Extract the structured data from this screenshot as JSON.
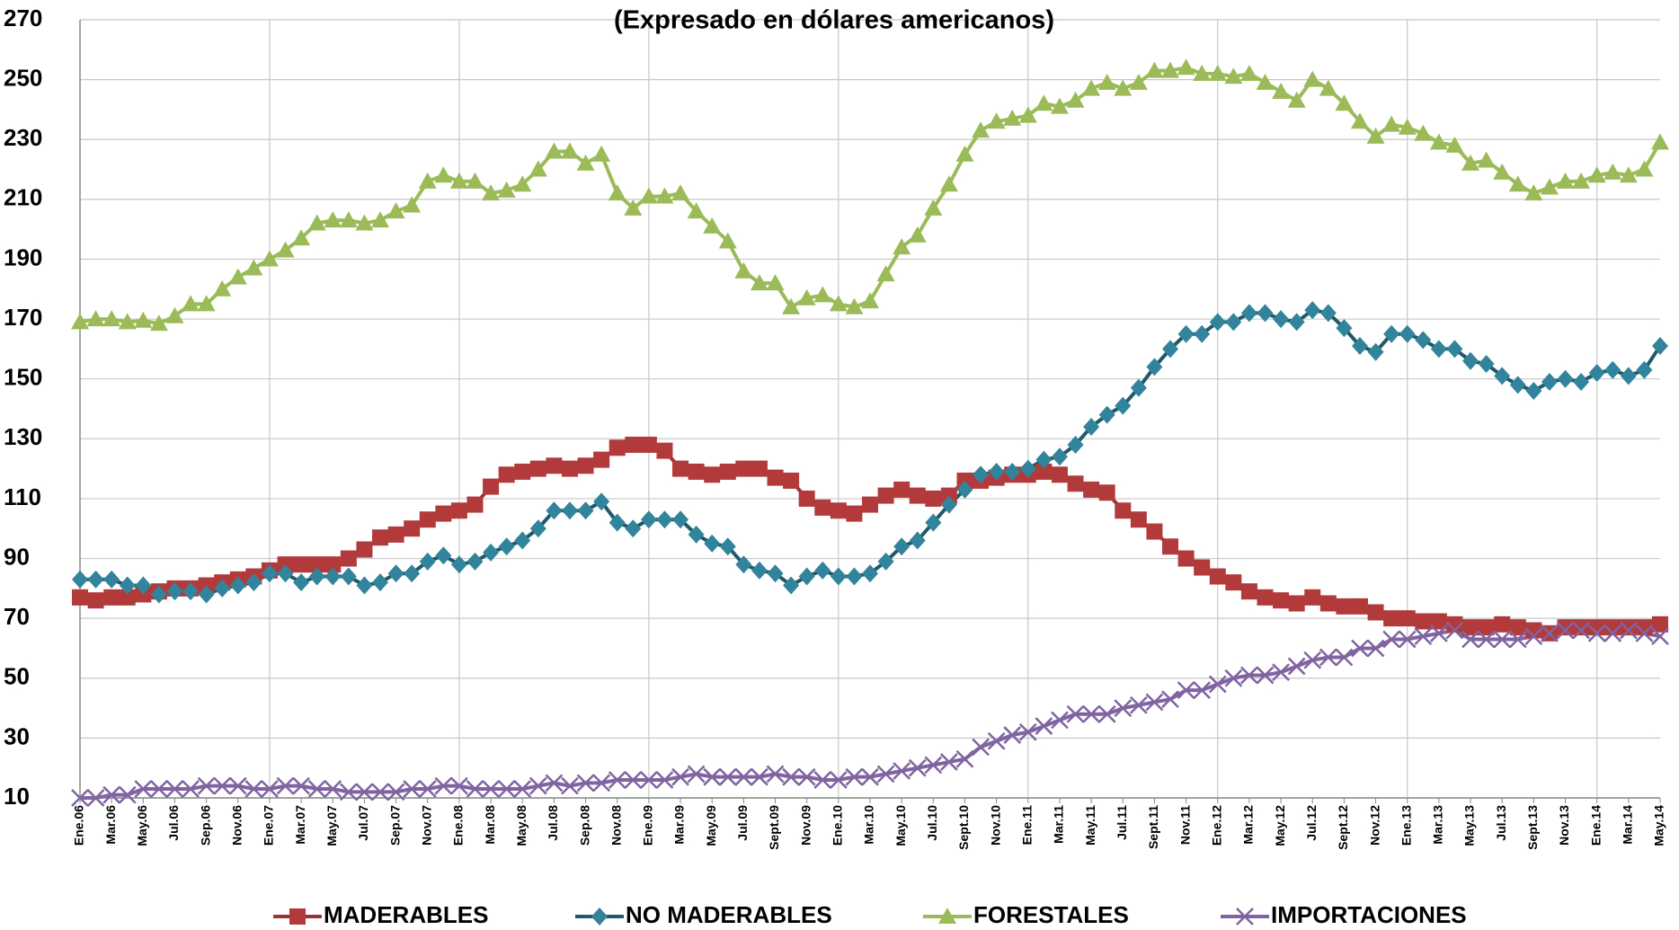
{
  "chart_data": {
    "type": "line",
    "title": "(Expresado en dólares americanos)",
    "categories": [
      "Ene.06",
      null,
      "Mar.06",
      null,
      "May.06",
      null,
      "Jul.06",
      null,
      "Sep.06",
      null,
      "Nov.06",
      null,
      "Ene.07",
      null,
      "Mar.07",
      null,
      "May.07",
      null,
      "Jul.07",
      null,
      "Sep.07",
      null,
      "Nov.07",
      null,
      "Ene.08",
      null,
      "Mar.08",
      null,
      "May.08",
      null,
      "Jul.08",
      null,
      "Sep.08",
      null,
      "Nov.08",
      null,
      "Ene.09",
      null,
      "Mar.09",
      null,
      "May.09",
      null,
      "Jul.09",
      null,
      "Sept.09",
      null,
      "Nov.09",
      null,
      "Ene.10",
      null,
      "Mar.10",
      null,
      "May.10",
      null,
      "Jul.10",
      null,
      "Sept.10",
      null,
      "Nov.10",
      null,
      "Ene.11",
      null,
      "Mar.11",
      null,
      "May.11",
      null,
      "Jul.11",
      null,
      "Sept.11",
      null,
      "Nov.11",
      null,
      "Ene.12",
      null,
      "Mar.12",
      null,
      "May.12",
      null,
      "Jul.12",
      null,
      "Sept.12",
      null,
      "Nov.12",
      null,
      "Ene.13",
      null,
      "Mar.13",
      null,
      "May.13",
      null,
      "Jul.13",
      null,
      "Sept.13",
      null,
      "Nov.13",
      null,
      "Ene.14",
      null,
      "Mar.14",
      null,
      "May.14"
    ],
    "series": [
      {
        "name": "MADERABLES",
        "color": "#b23a3a",
        "line_color": "#953735",
        "marker": "square",
        "values": [
          77,
          76,
          77,
          77,
          78,
          79,
          80,
          80,
          81,
          82,
          83,
          84,
          86,
          88,
          88,
          88,
          88,
          90,
          93,
          97,
          98,
          100,
          103,
          105,
          106,
          108,
          114,
          118,
          119,
          120,
          121,
          120,
          121,
          123,
          127,
          128,
          128,
          126,
          120,
          119,
          118,
          119,
          120,
          120,
          117,
          116,
          110,
          107,
          106,
          105,
          108,
          111,
          113,
          111,
          110,
          111,
          116,
          116,
          117,
          118,
          118,
          119,
          118,
          115,
          113,
          112,
          106,
          103,
          99,
          94,
          90,
          87,
          84,
          82,
          79,
          77,
          76,
          75,
          77,
          75,
          74,
          74,
          72,
          70,
          70,
          69,
          69,
          68,
          67,
          67,
          68,
          67,
          66,
          65,
          67,
          67,
          67,
          67,
          67,
          67,
          68
        ]
      },
      {
        "name": "NO MADERABLES",
        "color": "#31849b",
        "line_color": "#215968",
        "marker": "diamond",
        "values": [
          83,
          83,
          83,
          81,
          81,
          78,
          79,
          79,
          78,
          80,
          81,
          82,
          85,
          85,
          82,
          84,
          84,
          84,
          81,
          82,
          85,
          85,
          89,
          91,
          88,
          89,
          92,
          94,
          96,
          100,
          106,
          106,
          106,
          109,
          102,
          100,
          103,
          103,
          103,
          98,
          95,
          94,
          88,
          86,
          85,
          81,
          84,
          86,
          84,
          84,
          85,
          89,
          94,
          96,
          102,
          108,
          113,
          118,
          119,
          119,
          120,
          123,
          124,
          128,
          134,
          138,
          141,
          147,
          154,
          160,
          165,
          165,
          169,
          169,
          172,
          172,
          170,
          169,
          173,
          172,
          167,
          161,
          159,
          165,
          165,
          163,
          160,
          160,
          156,
          155,
          151,
          148,
          146,
          149,
          150,
          149,
          152,
          153,
          151,
          153,
          161
        ]
      },
      {
        "name": "FORESTALES",
        "color": "#9bbb59",
        "line_color": "#9bbb59",
        "marker": "triangle",
        "values": [
          169,
          170,
          170,
          169,
          169.5,
          168.5,
          171,
          175,
          175,
          180,
          184,
          187,
          190,
          193,
          197,
          202,
          203,
          203,
          202,
          203,
          206,
          208,
          216,
          218,
          216,
          216,
          212,
          213,
          215,
          220,
          226,
          226,
          222,
          225,
          212,
          207,
          211,
          211,
          212,
          206,
          201,
          196,
          186,
          182,
          182,
          174,
          177,
          178,
          175,
          174,
          176,
          185,
          194,
          198,
          207,
          215,
          225,
          233,
          236,
          237,
          238,
          242,
          241,
          243,
          247,
          249,
          247,
          249,
          253,
          253,
          254,
          252,
          252,
          251,
          252,
          249,
          246,
          243,
          250,
          247,
          242,
          236,
          231,
          235,
          234,
          232,
          229,
          228,
          222,
          223,
          219,
          215,
          212,
          214,
          216,
          216,
          218,
          219,
          218,
          220,
          229
        ]
      },
      {
        "name": "IMPORTACIONES",
        "color": "#8064a2",
        "line_color": "#8064a2",
        "marker": "x",
        "values": [
          10,
          10,
          11,
          11,
          13,
          13,
          13,
          13,
          14,
          14,
          14,
          13,
          13,
          14,
          14,
          13,
          13,
          12,
          12,
          12,
          12,
          13,
          13,
          14,
          14,
          13,
          13,
          13,
          13,
          14,
          15,
          14,
          15,
          15,
          16,
          16,
          16,
          16,
          17,
          18,
          17,
          17,
          17,
          17,
          18,
          17,
          17,
          16,
          16,
          17,
          17,
          18,
          19,
          20,
          21,
          22,
          23,
          27,
          29,
          31,
          32,
          34,
          36,
          38,
          38,
          38,
          40,
          41,
          42,
          43,
          46,
          46,
          48,
          50,
          51,
          51,
          52,
          54,
          56,
          57,
          57,
          60,
          60,
          63,
          63,
          64,
          65,
          66,
          63,
          63,
          63,
          63,
          64,
          65,
          66,
          66,
          65,
          65,
          66,
          65,
          64
        ]
      }
    ],
    "ylim": [
      10,
      270
    ],
    "yticks": [
      10,
      30,
      50,
      70,
      90,
      110,
      130,
      150,
      170,
      190,
      210,
      230,
      250,
      270
    ],
    "grid": true,
    "legend": "bottom"
  }
}
